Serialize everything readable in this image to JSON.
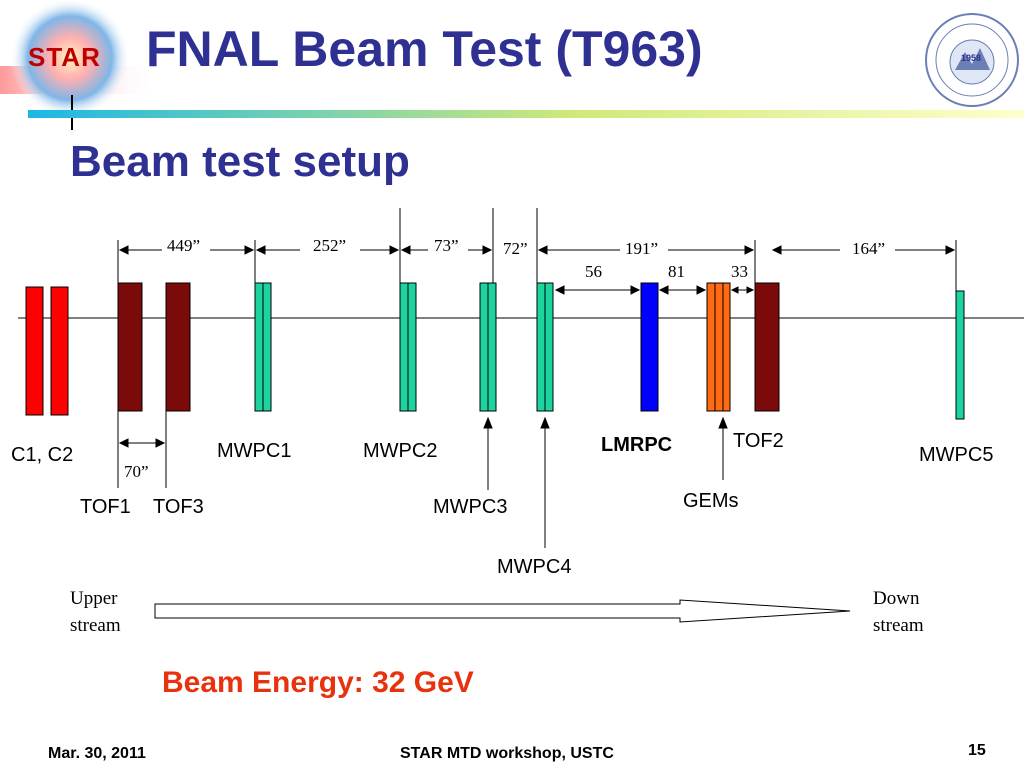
{
  "header": {
    "title": "FNAL Beam Test (T963)",
    "logo_left_text": "STAR",
    "seal_year": "1958"
  },
  "subtitle": "Beam test setup",
  "diagram": {
    "detectors": {
      "c1c2": "C1, C2",
      "tof1": "TOF1",
      "tof3": "TOF3",
      "mwpc1": "MWPC1",
      "mwpc2": "MWPC2",
      "mwpc3": "MWPC3",
      "mwpc4": "MWPC4",
      "lmrpc": "LMRPC",
      "tof2": "TOF2",
      "gems": "GEMs",
      "mwpc5": "MWPC5"
    },
    "distances": {
      "d449": "449”",
      "d252": "252”",
      "d73": "73”",
      "d72": "72”",
      "d191": "191”",
      "d164": "164”",
      "d70": "70”",
      "d56": "56",
      "d81": "81",
      "d33": "33"
    },
    "upstream": [
      "Upper",
      "stream"
    ],
    "downstream": [
      "Down",
      "stream"
    ]
  },
  "beam_energy": "Beam Energy: 32 GeV",
  "footer": {
    "date": "Mar. 30, 2011",
    "event": "STAR MTD workshop, USTC",
    "page": "15"
  },
  "colors": {
    "title": "#2E3192",
    "c1c2": "#FF0000",
    "tof": "#7B0A0A",
    "mwpc": "#1DD3A0",
    "lmrpc": "#0000FF",
    "gems": "#FF6A13",
    "energy": "#E8320E"
  }
}
